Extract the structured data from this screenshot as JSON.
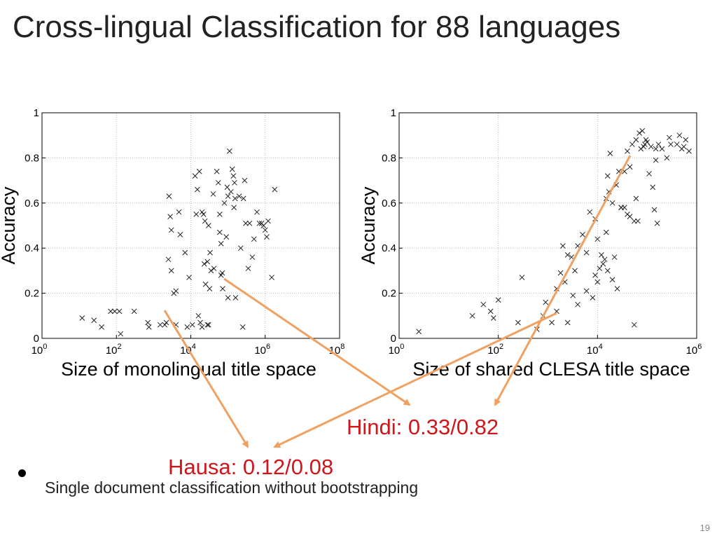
{
  "slide": {
    "title": "Cross-lingual Classification for 88 languages",
    "bullet": "Single document classification without bootstrapping",
    "page_number": "19"
  },
  "annotations": {
    "hindi": "Hindi: 0.33/0.82",
    "hausa": "Hausa: 0.12/0.08",
    "arrow_color": "#f0a060",
    "text_color": "#d0151b"
  },
  "chart_data": [
    {
      "type": "scatter",
      "xlabel": "Size of monolingual title space",
      "ylabel": "Accuracy",
      "xscale": "log",
      "xlim": [
        1,
        100000000
      ],
      "ylim": [
        0,
        1
      ],
      "xticks": [
        1,
        100,
        10000,
        1000000,
        100000000
      ],
      "xtick_labels": [
        [
          "10",
          "0"
        ],
        [
          "10",
          "2"
        ],
        [
          "10",
          "4"
        ],
        [
          "10",
          "6"
        ],
        [
          "10",
          "8"
        ]
      ],
      "yticks": [
        0,
        0.2,
        0.4,
        0.6,
        0.8,
        1
      ],
      "ytick_labels": [
        "0",
        "0.2",
        "0.4",
        "0.6",
        "0.8",
        "1"
      ],
      "grid": true,
      "marker": "x",
      "points": [
        [
          12,
          0.09
        ],
        [
          25,
          0.08
        ],
        [
          40,
          0.05
        ],
        [
          70,
          0.12
        ],
        [
          90,
          0.12
        ],
        [
          130,
          0.02
        ],
        [
          120,
          0.12
        ],
        [
          300,
          0.12
        ],
        [
          700,
          0.07
        ],
        [
          750,
          0.05
        ],
        [
          1500,
          0.06
        ],
        [
          2000,
          0.06
        ],
        [
          2200,
          0.07
        ],
        [
          2600,
          0.63
        ],
        [
          2800,
          0.54
        ],
        [
          2500,
          0.35
        ],
        [
          3000,
          0.48
        ],
        [
          3000,
          0.3
        ],
        [
          3500,
          0.2
        ],
        [
          4000,
          0.21
        ],
        [
          4000,
          0.06
        ],
        [
          4800,
          0.56
        ],
        [
          5200,
          0.46
        ],
        [
          8000,
          0.05
        ],
        [
          7000,
          0.38
        ],
        [
          9000,
          0.27
        ],
        [
          11000,
          0.06
        ],
        [
          13000,
          0.72
        ],
        [
          14000,
          0.55
        ],
        [
          15000,
          0.66
        ],
        [
          16000,
          0.1
        ],
        [
          17000,
          0.74
        ],
        [
          18000,
          0.07
        ],
        [
          20000,
          0.05
        ],
        [
          20000,
          0.56
        ],
        [
          22000,
          0.55
        ],
        [
          24000,
          0.52
        ],
        [
          23000,
          0.33
        ],
        [
          25000,
          0.24
        ],
        [
          28000,
          0.34
        ],
        [
          28000,
          0.06
        ],
        [
          30000,
          0.5
        ],
        [
          32000,
          0.22
        ],
        [
          33000,
          0.38
        ],
        [
          35000,
          0.3
        ],
        [
          40000,
          0.64
        ],
        [
          42000,
          0.31
        ],
        [
          50000,
          0.74
        ],
        [
          55000,
          0.69
        ],
        [
          60000,
          0.55
        ],
        [
          60000,
          0.47
        ],
        [
          65000,
          0.28
        ],
        [
          65000,
          0.42
        ],
        [
          70000,
          0.29
        ],
        [
          72000,
          0.22
        ],
        [
          80000,
          0.6
        ],
        [
          90000,
          0.45
        ],
        [
          95000,
          0.67
        ],
        [
          100000,
          0.63
        ],
        [
          110000,
          0.83
        ],
        [
          120000,
          0.65
        ],
        [
          130000,
          0.75
        ],
        [
          140000,
          0.72
        ],
        [
          145000,
          0.58
        ],
        [
          150000,
          0.69
        ],
        [
          155000,
          0.62
        ],
        [
          160000,
          0.18
        ],
        [
          200000,
          0.63
        ],
        [
          220000,
          0.4
        ],
        [
          250000,
          0.05
        ],
        [
          260000,
          0.62
        ],
        [
          280000,
          0.7
        ],
        [
          300000,
          0.51
        ],
        [
          380000,
          0.51
        ],
        [
          450000,
          0.36
        ],
        [
          500000,
          0.44
        ],
        [
          600000,
          0.56
        ],
        [
          700000,
          0.51
        ],
        [
          800000,
          0.51
        ],
        [
          900000,
          0.5
        ],
        [
          1000000,
          0.48
        ],
        [
          1100000,
          0.45
        ],
        [
          1200000,
          0.52
        ],
        [
          1500000,
          0.27
        ],
        [
          1800000,
          0.66
        ],
        [
          350000,
          0.31
        ],
        [
          100000,
          0.18
        ],
        [
          30000,
          0.06
        ]
      ]
    },
    {
      "type": "scatter",
      "xlabel": "Size of shared CLESA title space",
      "ylabel": "Accuracy",
      "xscale": "log",
      "xlim": [
        1,
        1000000
      ],
      "ylim": [
        0,
        1
      ],
      "xticks": [
        1,
        100,
        10000,
        1000000
      ],
      "xtick_labels": [
        [
          "10",
          "0"
        ],
        [
          "10",
          "2"
        ],
        [
          "10",
          "4"
        ],
        [
          "10",
          "6"
        ]
      ],
      "yticks": [
        0,
        0.2,
        0.4,
        0.6,
        0.8,
        1
      ],
      "ytick_labels": [
        "0",
        "0.2",
        "0.4",
        "0.6",
        "0.8",
        "1"
      ],
      "grid": true,
      "marker": "x",
      "points": [
        [
          2.5,
          0.03
        ],
        [
          30,
          0.1
        ],
        [
          50,
          0.15
        ],
        [
          70,
          0.12
        ],
        [
          80,
          0.09
        ],
        [
          100,
          0.17
        ],
        [
          250,
          0.07
        ],
        [
          300,
          0.27
        ],
        [
          600,
          0.04
        ],
        [
          800,
          0.1
        ],
        [
          900,
          0.16
        ],
        [
          1200,
          0.07
        ],
        [
          1500,
          0.12
        ],
        [
          1500,
          0.22
        ],
        [
          1800,
          0.29
        ],
        [
          2000,
          0.41
        ],
        [
          2200,
          0.25
        ],
        [
          2500,
          0.37
        ],
        [
          2500,
          0.07
        ],
        [
          3000,
          0.36
        ],
        [
          3200,
          0.19
        ],
        [
          3500,
          0.3
        ],
        [
          4000,
          0.41
        ],
        [
          4000,
          0.15
        ],
        [
          5000,
          0.46
        ],
        [
          6000,
          0.38
        ],
        [
          6000,
          0.21
        ],
        [
          7000,
          0.56
        ],
        [
          8000,
          0.18
        ],
        [
          9000,
          0.28
        ],
        [
          9000,
          0.53
        ],
        [
          10000,
          0.44
        ],
        [
          10000,
          0.25
        ],
        [
          11000,
          0.31
        ],
        [
          12000,
          0.37
        ],
        [
          13000,
          0.33
        ],
        [
          14000,
          0.35
        ],
        [
          15000,
          0.62
        ],
        [
          15000,
          0.47
        ],
        [
          16000,
          0.3
        ],
        [
          16000,
          0.72
        ],
        [
          17000,
          0.65
        ],
        [
          18000,
          0.82
        ],
        [
          20000,
          0.26
        ],
        [
          20000,
          0.6
        ],
        [
          22000,
          0.36
        ],
        [
          24000,
          0.68
        ],
        [
          25000,
          0.22
        ],
        [
          27000,
          0.74
        ],
        [
          30000,
          0.58
        ],
        [
          35000,
          0.74
        ],
        [
          40000,
          0.83
        ],
        [
          40000,
          0.55
        ],
        [
          45000,
          0.54
        ],
        [
          45000,
          0.76
        ],
        [
          50000,
          0.86
        ],
        [
          55000,
          0.06
        ],
        [
          55000,
          0.52
        ],
        [
          60000,
          0.88
        ],
        [
          60000,
          0.62
        ],
        [
          65000,
          0.52
        ],
        [
          70000,
          0.91
        ],
        [
          75000,
          0.84
        ],
        [
          80000,
          0.92
        ],
        [
          85000,
          0.85
        ],
        [
          90000,
          0.86
        ],
        [
          95000,
          0.88
        ],
        [
          100000,
          0.87
        ],
        [
          110000,
          0.73
        ],
        [
          120000,
          0.85
        ],
        [
          140000,
          0.57
        ],
        [
          150000,
          0.84
        ],
        [
          160000,
          0.51
        ],
        [
          170000,
          0.86
        ],
        [
          200000,
          0.84
        ],
        [
          250000,
          0.8
        ],
        [
          280000,
          0.89
        ],
        [
          300000,
          0.86
        ],
        [
          400000,
          0.86
        ],
        [
          450000,
          0.9
        ],
        [
          500000,
          0.84
        ],
        [
          550000,
          0.85
        ],
        [
          600000,
          0.88
        ],
        [
          700000,
          0.83
        ],
        [
          150000,
          0.79
        ],
        [
          130000,
          0.67
        ],
        [
          30000,
          0.58
        ],
        [
          35000,
          0.58
        ]
      ]
    }
  ]
}
